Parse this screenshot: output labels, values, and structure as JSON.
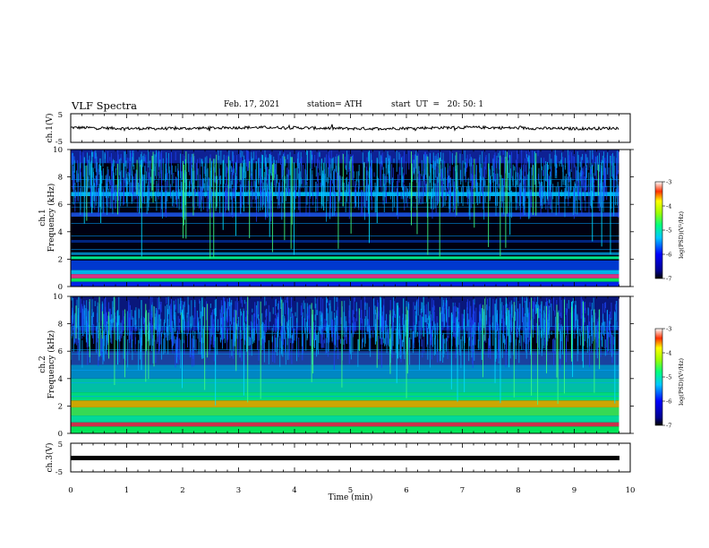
{
  "header": {
    "title": "VLF Spectra",
    "date": "Feb. 17, 2021",
    "station": "station= ATH",
    "start": "start  UT  =   20: 50: 1"
  },
  "chart_data": [
    {
      "type": "line",
      "panel": "ch1-waveform",
      "ylabel": "ch.1(V)",
      "ylim": [
        -5,
        5
      ],
      "yticks": [
        "5",
        "-5"
      ],
      "xlim": [
        0,
        10
      ],
      "description_trace": "noisy waveform near 0 V"
    },
    {
      "type": "heatmap",
      "panel": "ch1-spectrogram",
      "ylabel": "ch.1 Frequency (kHz)",
      "ylim": [
        0,
        10
      ],
      "yticks": [
        "0",
        "2",
        "4",
        "6",
        "8",
        "10"
      ],
      "xlim": [
        0,
        10
      ],
      "data_end_min": 9.8,
      "colorbar": {
        "label": "log(PSD)(V²/Hz)",
        "range": [
          -7,
          -3
        ],
        "ticks": [
          "-3",
          "-4",
          "-5",
          "-6",
          "-7"
        ]
      }
    },
    {
      "type": "heatmap",
      "panel": "ch2-spectrogram",
      "ylabel": "ch.2 Frequency (kHz)",
      "ylim": [
        0,
        10
      ],
      "yticks": [
        "0",
        "2",
        "4",
        "6",
        "8",
        "10"
      ],
      "xlim": [
        0,
        10
      ],
      "data_end_min": 9.8,
      "colorbar": {
        "label": "log(PSD)(V²/Hz)",
        "range": [
          -7,
          -3
        ],
        "ticks": [
          "-3",
          "-4",
          "-5",
          "-6",
          "-7"
        ]
      }
    },
    {
      "type": "line",
      "panel": "ch3-waveform",
      "ylabel": "ch.3(V)",
      "ylim": [
        -5,
        5
      ],
      "yticks": [
        "5",
        "-5"
      ],
      "xlim": [
        0,
        10
      ],
      "xlabel": "Time  (min)",
      "xticks": [
        "0",
        "1",
        "2",
        "3",
        "4",
        "5",
        "6",
        "7",
        "8",
        "9",
        "10"
      ]
    }
  ]
}
